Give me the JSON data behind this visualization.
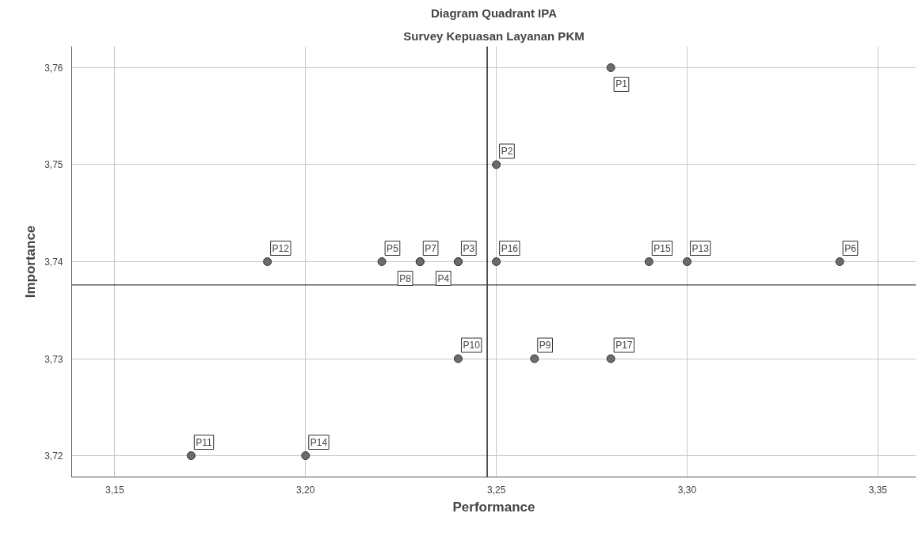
{
  "chart_data": {
    "type": "scatter",
    "title": "Diagram Quadrant IPA",
    "subtitle": "Survey Kepuasan Layanan PKM",
    "xlabel": "Performance",
    "ylabel": "Importance",
    "x": [
      3.28,
      3.25,
      3.24,
      3.24,
      3.22,
      3.34,
      3.23,
      3.23,
      3.26,
      3.24,
      3.17,
      3.19,
      3.3,
      3.2,
      3.29,
      3.25,
      3.28
    ],
    "series": [
      {
        "color": "#6b6b6b",
        "values": [
          3.76,
          3.75,
          3.74,
          3.74,
          3.74,
          3.74,
          3.74,
          3.74,
          3.73,
          3.73,
          3.72,
          3.74,
          3.74,
          3.72,
          3.74,
          3.74,
          3.73
        ]
      }
    ],
    "annotations": [
      {
        "text": "P1",
        "x": 3.28,
        "y": 3.76
      },
      {
        "text": "P2",
        "x": 3.25,
        "y": 3.75
      },
      {
        "text": "P3",
        "x": 3.24,
        "y": 3.74
      },
      {
        "text": "P4",
        "x": 3.24,
        "y": 3.74
      },
      {
        "text": "P5",
        "x": 3.22,
        "y": 3.74
      },
      {
        "text": "P6",
        "x": 3.34,
        "y": 3.74
      },
      {
        "text": "P7",
        "x": 3.23,
        "y": 3.74
      },
      {
        "text": "P8",
        "x": 3.23,
        "y": 3.74
      },
      {
        "text": "P9",
        "x": 3.26,
        "y": 3.73
      },
      {
        "text": "P10",
        "x": 3.24,
        "y": 3.73
      },
      {
        "text": "P11",
        "x": 3.17,
        "y": 3.72
      },
      {
        "text": "P12",
        "x": 3.19,
        "y": 3.74
      },
      {
        "text": "P13",
        "x": 3.3,
        "y": 3.74
      },
      {
        "text": "P14",
        "x": 3.2,
        "y": 3.72
      },
      {
        "text": "P15",
        "x": 3.29,
        "y": 3.74
      },
      {
        "text": "P16",
        "x": 3.25,
        "y": 3.74
      },
      {
        "text": "P17",
        "x": 3.28,
        "y": 3.73
      }
    ],
    "ref_lines": [
      {
        "axis": "x",
        "value": 3.2476,
        "color": "#000000"
      },
      {
        "axis": "y",
        "value": 3.7376,
        "color": "#444444"
      }
    ],
    "xlim": [
      3.1387,
      3.36
    ],
    "ylim": [
      3.7178,
      3.7622
    ],
    "xticks": [
      {
        "value": 3.15,
        "label": "3,15"
      },
      {
        "value": 3.2,
        "label": "3,20"
      },
      {
        "value": 3.25,
        "label": "3,25"
      },
      {
        "value": 3.3,
        "label": "3,30"
      },
      {
        "value": 3.35,
        "label": "3,35"
      }
    ],
    "yticks": [
      {
        "value": 3.72,
        "label": "3,72"
      },
      {
        "value": 3.73,
        "label": "3,73"
      },
      {
        "value": 3.74,
        "label": "3,74"
      },
      {
        "value": 3.75,
        "label": "3,75"
      },
      {
        "value": 3.76,
        "label": "3,76"
      }
    ],
    "grid": true,
    "marker": "circle"
  }
}
